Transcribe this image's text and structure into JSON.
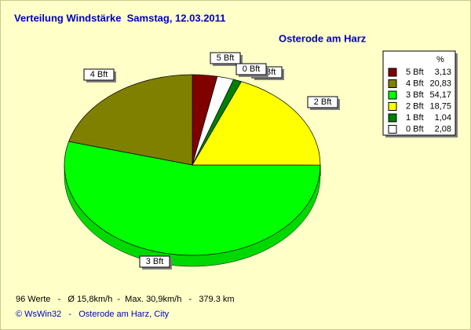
{
  "chart_data": {
    "type": "pie3d",
    "title": "Verteilung Windstärke  Samstag, 12.03.2011",
    "subtitle": "Osterode am Harz",
    "legend_title": "%",
    "categories": [
      "5 Bft",
      "4 Bft",
      "3 Bft",
      "2 Bft",
      "1 Bft",
      "0 Bft"
    ],
    "values": [
      3.13,
      20.83,
      54.17,
      18.75,
      1.04,
      2.08
    ],
    "value_labels": [
      "3,13",
      "20,83",
      "54,17",
      "18,75",
      "1,04",
      "2,08"
    ],
    "colors": [
      "#800000",
      "#808000",
      "#00ff00",
      "#ffff00",
      "#008000",
      "#ffffff"
    ],
    "stats": "96 Werte   -   Ø 15,8km/h  -  Max. 30,9km/h   -   379.3 km",
    "footer": "© WsWin32   -   Osterode am Harz, City"
  }
}
